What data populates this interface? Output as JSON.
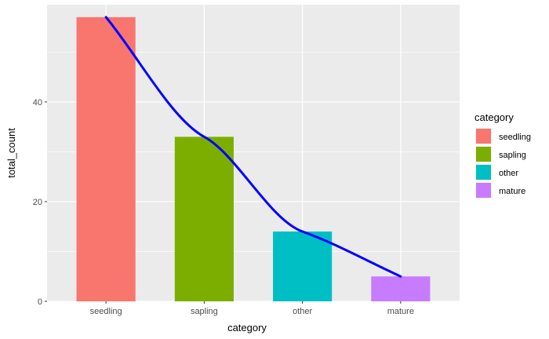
{
  "chart_data": {
    "type": "bar",
    "categories": [
      "seedling",
      "sapling",
      "other",
      "mature"
    ],
    "values": [
      57,
      33,
      14,
      5
    ],
    "colors": [
      "#F8766D",
      "#7CAE00",
      "#00BFC4",
      "#C77CFF"
    ],
    "xlabel": "category",
    "ylabel": "total_count",
    "ylim": [
      0,
      59.5
    ],
    "yticks": [
      0,
      20,
      40
    ],
    "grid": true,
    "legend": {
      "title": "category",
      "position": "right",
      "items": [
        "seedling",
        "sapling",
        "other",
        "mature"
      ]
    },
    "smooth_line": {
      "color": "#0000FF",
      "y": [
        57,
        33,
        14,
        5
      ]
    }
  }
}
